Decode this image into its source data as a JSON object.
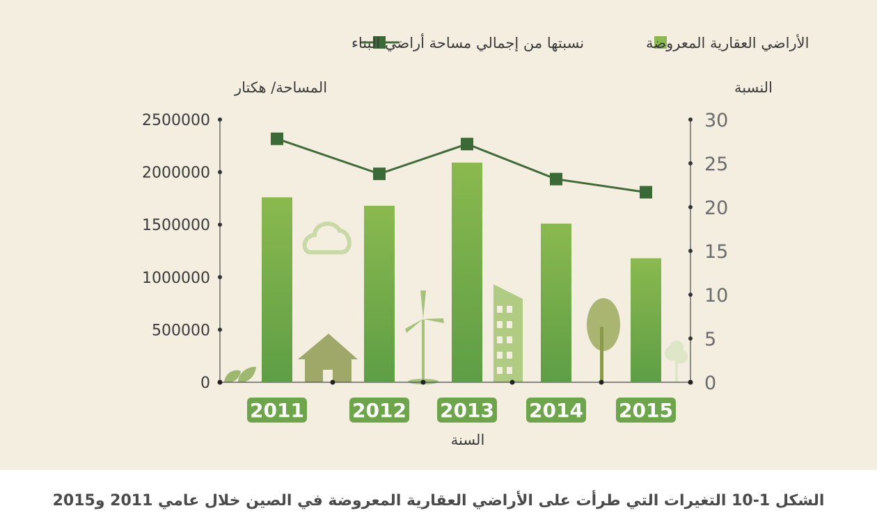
{
  "colors": {
    "background": "#f3eedf",
    "bar_top": "#8ab94f",
    "bar_bottom": "#5e9e45",
    "line": "#3f6b38",
    "marker": "#3a6a36",
    "decoration": "#c6d6a4",
    "decoration_dark": "#9fa769",
    "label_bg": "#6da64a"
  },
  "chart_data": {
    "type": "bar",
    "title": "",
    "categories": [
      "2011",
      "2012",
      "2013",
      "2014",
      "2015"
    ],
    "xlabel": "السنة",
    "ylabel": "المساحة/ هكتار",
    "ylabel_right": "النسبة",
    "ylim": [
      0,
      2500000
    ],
    "ylim_right": [
      0,
      30
    ],
    "yticks": [
      "2500000",
      "2000000",
      "1500000",
      "1000000",
      "500000",
      "0"
    ],
    "yticks_right": [
      "30",
      "25",
      "20",
      "15",
      "10",
      "5",
      "0"
    ],
    "series": [
      {
        "name": "الأراضي العقارية المعروضة",
        "kind": "bar",
        "axis": "left",
        "values": [
          1760000,
          1680000,
          2090000,
          1510000,
          1180000
        ]
      },
      {
        "name": "نسبتها من إجمالي مساحة أراضي البناء",
        "kind": "line",
        "axis": "right",
        "values": [
          27.8,
          23.8,
          27.2,
          23.2,
          21.7
        ]
      }
    ],
    "legend_position": "top"
  },
  "caption": "الشكل 1-10 التغيرات التي طرأت على الأراضي العقارية المعروضة في الصين خلال عامي 2011 و2015",
  "icons": [
    "leaf-icon",
    "cloud-icon",
    "house-icon",
    "wind-turbine-icon",
    "building-icon",
    "tree-icon",
    "small-tree-icon"
  ]
}
